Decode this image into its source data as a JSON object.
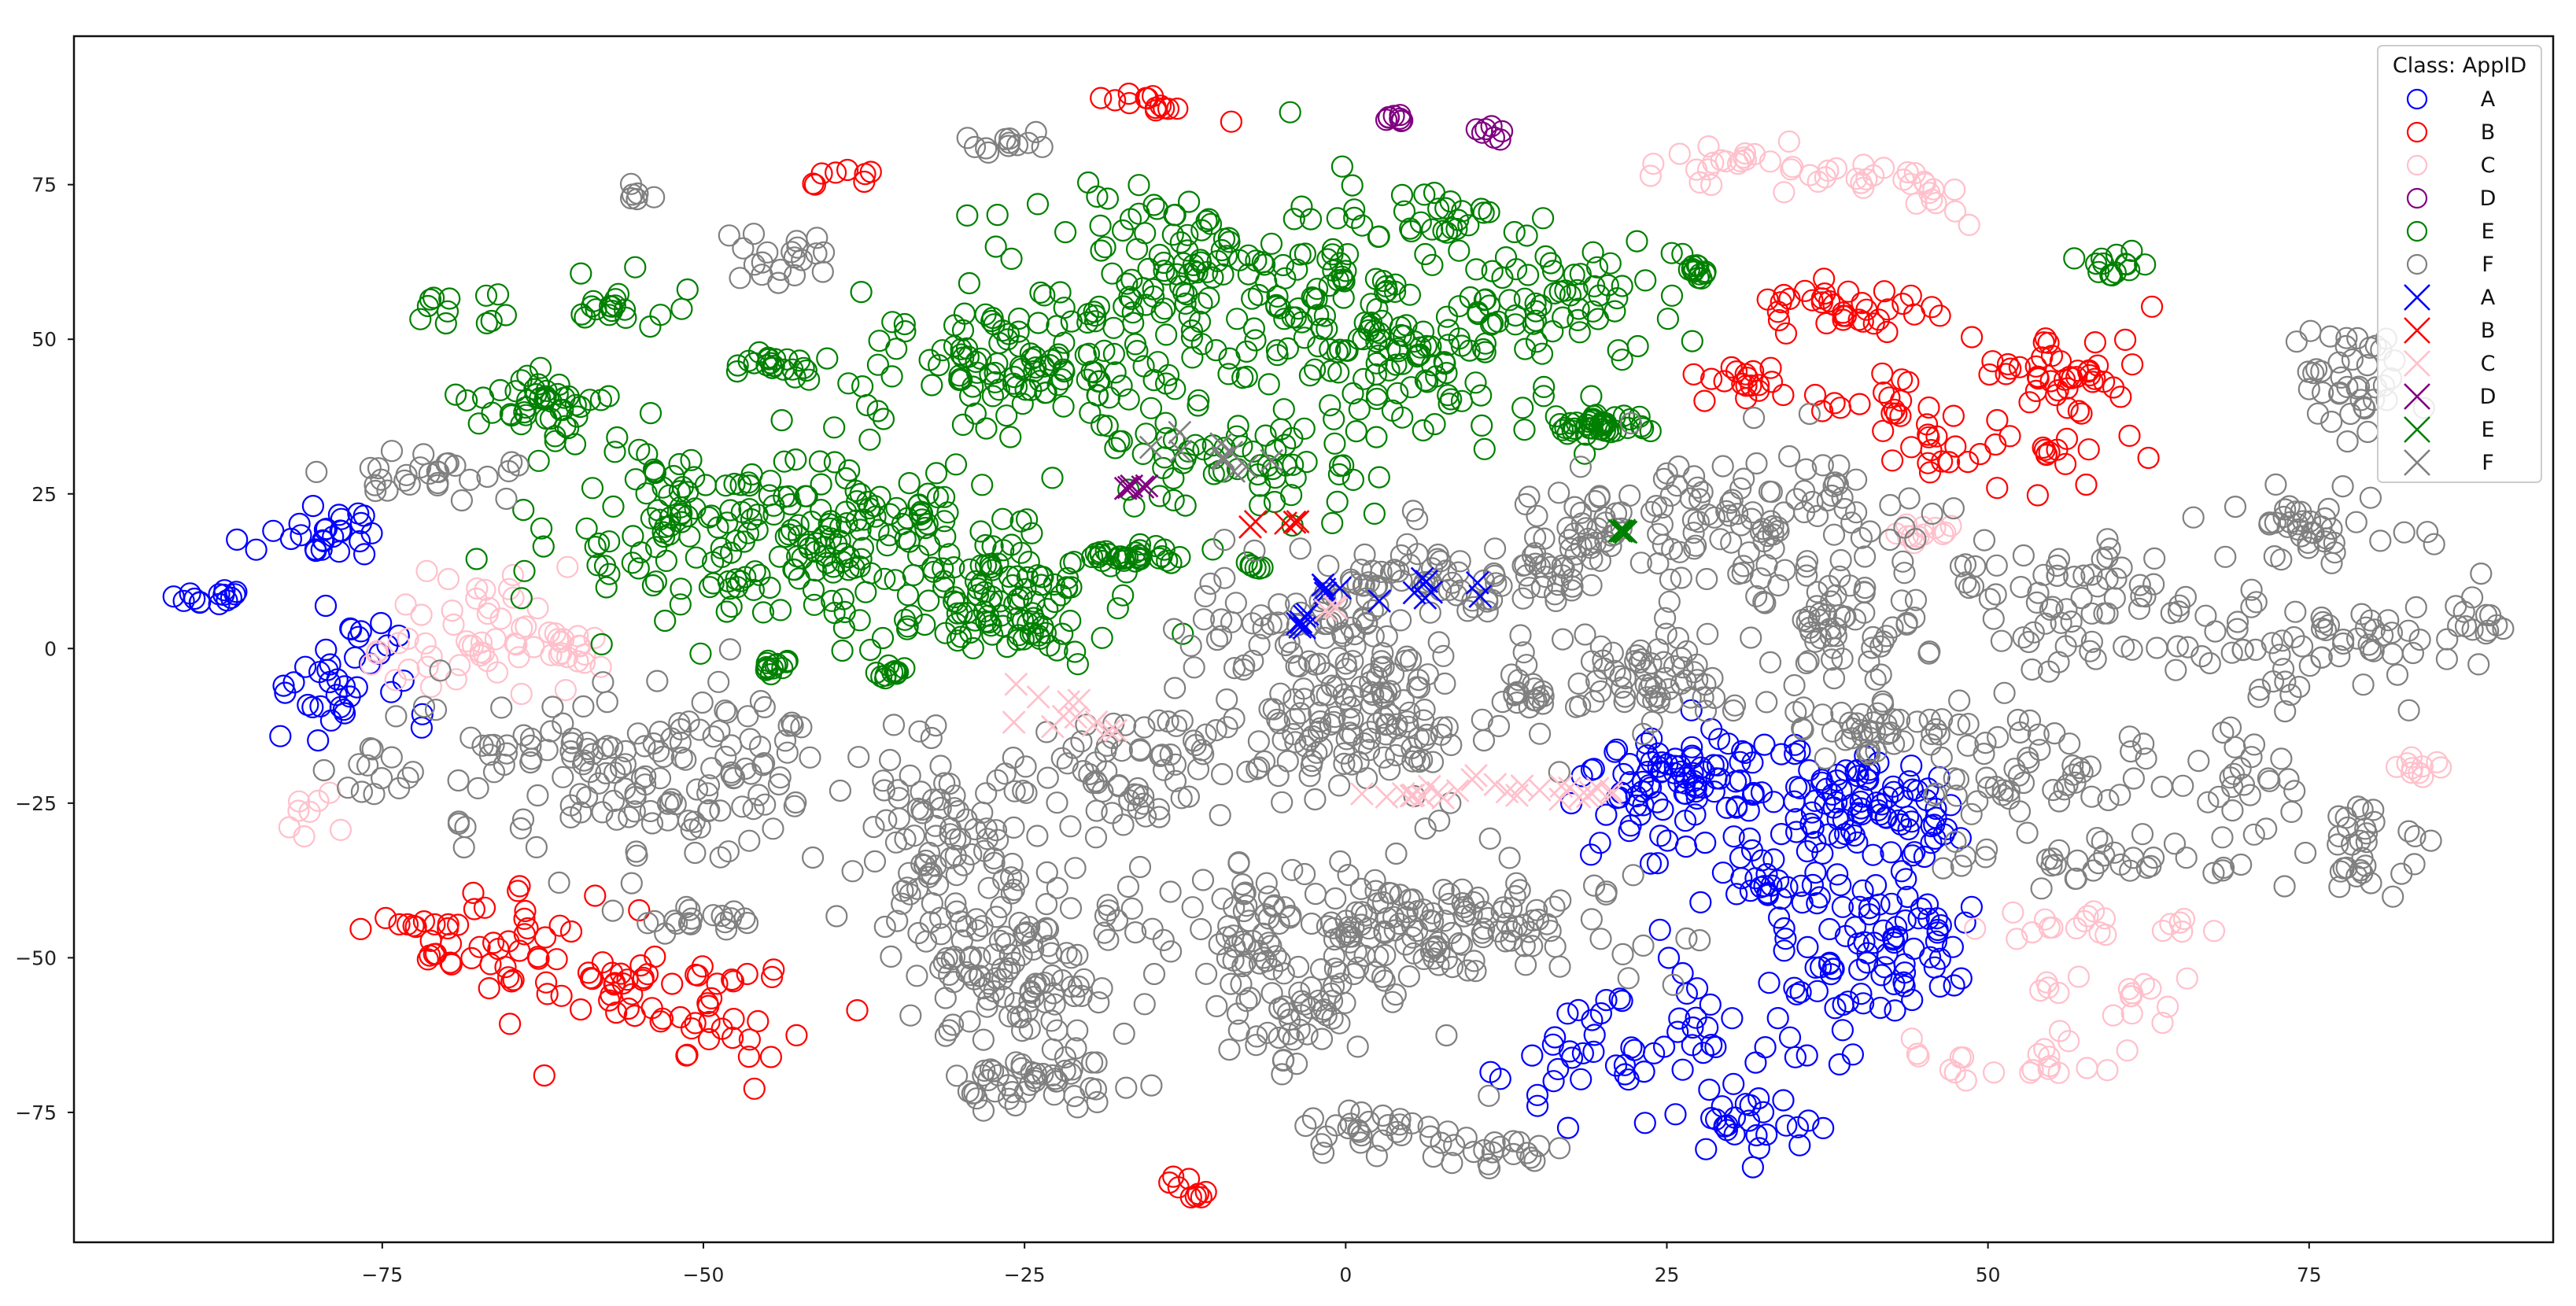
{
  "chart_data": {
    "type": "scatter",
    "title": "",
    "xlabel": "",
    "ylabel": "",
    "xlim": [
      -99,
      94
    ],
    "ylim": [
      -96,
      99
    ],
    "grid": false,
    "x_ticks": [
      -75,
      -50,
      -25,
      0,
      25,
      50,
      75
    ],
    "y_ticks": [
      -75,
      -50,
      -25,
      0,
      25,
      50,
      75
    ],
    "legend": {
      "title": "Class: AppID",
      "placement": "top-right",
      "entries": [
        {
          "label": "A",
          "marker": "circle",
          "color": "#0000ff"
        },
        {
          "label": "B",
          "marker": "circle",
          "color": "#ff0000"
        },
        {
          "label": "C",
          "marker": "circle",
          "color": "#ffc0cb"
        },
        {
          "label": "D",
          "marker": "circle",
          "color": "#800080"
        },
        {
          "label": "E",
          "marker": "circle",
          "color": "#008000"
        },
        {
          "label": "F",
          "marker": "circle",
          "color": "#808080"
        },
        {
          "label": "A",
          "marker": "x",
          "color": "#0000ff"
        },
        {
          "label": "B",
          "marker": "x",
          "color": "#ff0000"
        },
        {
          "label": "C",
          "marker": "x",
          "color": "#ffc0cb"
        },
        {
          "label": "D",
          "marker": "x",
          "color": "#800080"
        },
        {
          "label": "E",
          "marker": "x",
          "color": "#008000"
        },
        {
          "label": "F",
          "marker": "x",
          "color": "#808080"
        }
      ]
    },
    "series": [
      {
        "class": "A",
        "marker": "circle",
        "color": "#0000ff",
        "clusters": [
          {
            "x": -88,
            "y": 8,
            "sx": 1.5,
            "sy": 1.0,
            "n": 14
          },
          {
            "x": -80,
            "y": 18,
            "sx": 3.0,
            "sy": 3.0,
            "n": 26
          },
          {
            "x": -79,
            "y": -8,
            "sx": 3.5,
            "sy": 4.0,
            "n": 28
          },
          {
            "x": -77,
            "y": 2,
            "sx": 1.5,
            "sy": 2.5,
            "n": 10
          },
          {
            "x": 27,
            "y": -22,
            "sx": 4.0,
            "sy": 4.5,
            "n": 90
          },
          {
            "x": 41,
            "y": -26,
            "sx": 3.5,
            "sy": 4.0,
            "n": 80
          },
          {
            "x": 35,
            "y": -38,
            "sx": 5.0,
            "sy": 4.0,
            "n": 55
          },
          {
            "x": 40,
            "y": -50,
            "sx": 4.0,
            "sy": 4.0,
            "n": 50
          },
          {
            "x": 27,
            "y": -62,
            "sx": 7.0,
            "sy": 5.0,
            "n": 42
          },
          {
            "x": 31,
            "y": -77,
            "sx": 3.0,
            "sy": 3.5,
            "n": 30
          },
          {
            "x": 20,
            "y": -70,
            "sx": 4.0,
            "sy": 3.0,
            "n": 16
          },
          {
            "x": 44,
            "y": -46,
            "sx": 3.0,
            "sy": 2.0,
            "n": 14
          }
        ]
      },
      {
        "class": "B",
        "marker": "circle",
        "color": "#ff0000",
        "clusters": [
          {
            "x": -14,
            "y": 88,
            "sx": 3.0,
            "sy": 1.2,
            "n": 14
          },
          {
            "x": -40,
            "y": 76,
            "sx": 1.5,
            "sy": 1.5,
            "n": 8
          },
          {
            "x": -12,
            "y": -87,
            "sx": 1.8,
            "sy": 1.0,
            "n": 9
          },
          {
            "x": 38,
            "y": 55,
            "sx": 4.0,
            "sy": 2.5,
            "n": 36
          },
          {
            "x": 31,
            "y": 43,
            "sx": 2.5,
            "sy": 2.0,
            "n": 18
          },
          {
            "x": 42,
            "y": 40,
            "sx": 2.5,
            "sy": 2.5,
            "n": 18
          },
          {
            "x": 55,
            "y": 45,
            "sx": 3.5,
            "sy": 3.5,
            "n": 42
          },
          {
            "x": 47,
            "y": 32,
            "sx": 2.0,
            "sy": 2.5,
            "n": 14
          },
          {
            "x": 54,
            "y": 31,
            "sx": 3.0,
            "sy": 2.5,
            "n": 18
          },
          {
            "x": -73,
            "y": -44,
            "sx": 2.0,
            "sy": 1.0,
            "n": 8
          },
          {
            "x": -66,
            "y": -46,
            "sx": 3.5,
            "sy": 4.0,
            "n": 30
          },
          {
            "x": -69,
            "y": -50,
            "sx": 3.0,
            "sy": 1.0,
            "n": 10
          },
          {
            "x": -59,
            "y": -54,
            "sx": 2.5,
            "sy": 1.5,
            "n": 12
          },
          {
            "x": -52,
            "y": -60,
            "sx": 4.5,
            "sy": 4.5,
            "n": 40
          },
          {
            "x": -48,
            "y": -53,
            "sx": 1.5,
            "sy": 1.0,
            "n": 8
          }
        ]
      },
      {
        "class": "C",
        "marker": "circle",
        "color": "#ffc0cb",
        "clusters": [
          {
            "x": 30,
            "y": 78,
            "sx": 3.0,
            "sy": 2.0,
            "n": 22
          },
          {
            "x": 40,
            "y": 76,
            "sx": 3.5,
            "sy": 1.0,
            "n": 16
          },
          {
            "x": 46,
            "y": 73,
            "sx": 1.5,
            "sy": 2.5,
            "n": 10
          },
          {
            "x": 45,
            "y": 19,
            "sx": 2.0,
            "sy": 1.0,
            "n": 12
          },
          {
            "x": -68,
            "y": 3,
            "sx": 3.0,
            "sy": 6.0,
            "n": 45
          },
          {
            "x": -61,
            "y": 0,
            "sx": 2.0,
            "sy": 2.0,
            "n": 20
          },
          {
            "x": -80,
            "y": -26,
            "sx": 1.0,
            "sy": 2.5,
            "n": 8
          },
          {
            "x": 57,
            "y": -45,
            "sx": 3.0,
            "sy": 1.5,
            "n": 14
          },
          {
            "x": 67,
            "y": -45,
            "sx": 1.2,
            "sy": 1.0,
            "n": 6
          },
          {
            "x": 60,
            "y": -56,
            "sx": 3.5,
            "sy": 2.0,
            "n": 16
          },
          {
            "x": 52,
            "y": -66,
            "sx": 4.5,
            "sy": 2.0,
            "n": 22
          },
          {
            "x": 84,
            "y": -19,
            "sx": 1.8,
            "sy": 1.2,
            "n": 10
          }
        ]
      },
      {
        "class": "D",
        "marker": "circle",
        "color": "#800080",
        "clusters": [
          {
            "x": 4,
            "y": 86,
            "sx": 0.5,
            "sy": 0.6,
            "n": 8
          },
          {
            "x": 10,
            "y": 84,
            "sx": 1.0,
            "sy": 0.6,
            "n": 7
          }
        ]
      },
      {
        "class": "E",
        "marker": "circle",
        "color": "#008000",
        "clusters": [
          {
            "x": -67,
            "y": 55,
            "sx": 3.0,
            "sy": 2.0,
            "n": 12
          },
          {
            "x": -56,
            "y": 56,
            "sx": 2.5,
            "sy": 2.0,
            "n": 20
          },
          {
            "x": -62,
            "y": 40,
            "sx": 3.0,
            "sy": 3.0,
            "n": 45
          },
          {
            "x": -45,
            "y": 46,
            "sx": 1.5,
            "sy": 1.0,
            "n": 22
          },
          {
            "x": -48,
            "y": 20,
            "sx": 8.0,
            "sy": 8.0,
            "n": 160
          },
          {
            "x": -34,
            "y": 15,
            "sx": 6.0,
            "sy": 7.0,
            "n": 110
          },
          {
            "x": -26,
            "y": 6,
            "sx": 4.0,
            "sy": 4.0,
            "n": 60
          },
          {
            "x": -25,
            "y": 45,
            "sx": 6.0,
            "sy": 6.0,
            "n": 110
          },
          {
            "x": -10,
            "y": 60,
            "sx": 9.0,
            "sy": 9.0,
            "n": 170
          },
          {
            "x": 5,
            "y": 48,
            "sx": 7.0,
            "sy": 7.0,
            "n": 110
          },
          {
            "x": -8,
            "y": 30,
            "sx": 5.0,
            "sy": 4.0,
            "n": 60
          },
          {
            "x": 15,
            "y": 58,
            "sx": 5.0,
            "sy": 5.0,
            "n": 60
          },
          {
            "x": 20,
            "y": 36,
            "sx": 1.5,
            "sy": 1.0,
            "n": 45
          },
          {
            "x": -17,
            "y": 15,
            "sx": 2.0,
            "sy": 1.0,
            "n": 35
          },
          {
            "x": -35,
            "y": -4,
            "sx": 0.6,
            "sy": 0.6,
            "n": 12
          },
          {
            "x": -45,
            "y": -3,
            "sx": 0.8,
            "sy": 0.6,
            "n": 12
          },
          {
            "x": 27,
            "y": 61,
            "sx": 0.6,
            "sy": 0.6,
            "n": 12
          },
          {
            "x": 60,
            "y": 62,
            "sx": 1.5,
            "sy": 1.0,
            "n": 14
          },
          {
            "x": -7,
            "y": 13,
            "sx": 0.4,
            "sy": 0.4,
            "n": 6
          },
          {
            "x": 8,
            "y": 70,
            "sx": 3.0,
            "sy": 2.0,
            "n": 20
          }
        ]
      },
      {
        "class": "F",
        "marker": "circle",
        "color": "#808080",
        "clusters": [
          {
            "x": -72,
            "y": 28,
            "sx": 4.0,
            "sy": 2.0,
            "n": 28
          },
          {
            "x": -54,
            "y": -20,
            "sx": 9.0,
            "sy": 7.0,
            "n": 160
          },
          {
            "x": -32,
            "y": -30,
            "sx": 4.0,
            "sy": 6.0,
            "n": 70
          },
          {
            "x": -25,
            "y": -50,
            "sx": 5.0,
            "sy": 8.0,
            "n": 140
          },
          {
            "x": -24,
            "y": -70,
            "sx": 4.0,
            "sy": 2.0,
            "n": 40
          },
          {
            "x": -18,
            "y": -20,
            "sx": 4.0,
            "sy": 5.0,
            "n": 60
          },
          {
            "x": 0,
            "y": -12,
            "sx": 6.0,
            "sy": 6.0,
            "n": 150
          },
          {
            "x": -3,
            "y": 5,
            "sx": 5.0,
            "sy": 3.0,
            "n": 60
          },
          {
            "x": 9,
            "y": 12,
            "sx": 6.0,
            "sy": 4.0,
            "n": 80
          },
          {
            "x": 5,
            "y": -45,
            "sx": 8.0,
            "sy": 5.0,
            "n": 170
          },
          {
            "x": -4,
            "y": -60,
            "sx": 3.0,
            "sy": 4.0,
            "n": 50
          },
          {
            "x": 2,
            "y": -78,
            "sx": 4.0,
            "sy": 2.0,
            "n": 30
          },
          {
            "x": 12,
            "y": -82,
            "sx": 3.0,
            "sy": 1.5,
            "n": 18
          },
          {
            "x": -8,
            "y": -45,
            "sx": 1.5,
            "sy": 6.0,
            "n": 25
          },
          {
            "x": 30,
            "y": 20,
            "sx": 7.0,
            "sy": 6.0,
            "n": 120
          },
          {
            "x": 25,
            "y": -5,
            "sx": 3.0,
            "sy": 4.0,
            "n": 60
          },
          {
            "x": 40,
            "y": 5,
            "sx": 4.0,
            "sy": 5.0,
            "n": 60
          },
          {
            "x": 42,
            "y": -12,
            "sx": 4.0,
            "sy": 3.0,
            "n": 50
          },
          {
            "x": 56,
            "y": 10,
            "sx": 5.0,
            "sy": 6.0,
            "n": 60
          },
          {
            "x": 53,
            "y": -20,
            "sx": 5.0,
            "sy": 4.0,
            "n": 50
          },
          {
            "x": 62,
            "y": -34,
            "sx": 8.0,
            "sy": 2.0,
            "n": 40
          },
          {
            "x": 74,
            "y": 0,
            "sx": 6.0,
            "sy": 5.0,
            "n": 70
          },
          {
            "x": 75,
            "y": 20,
            "sx": 4.0,
            "sy": 3.0,
            "n": 40
          },
          {
            "x": 79,
            "y": 42,
            "sx": 2.5,
            "sy": 5.0,
            "n": 40
          },
          {
            "x": 80,
            "y": -32,
            "sx": 2.5,
            "sy": 4.0,
            "n": 30
          },
          {
            "x": -49,
            "y": -44,
            "sx": 4.0,
            "sy": 1.0,
            "n": 20
          },
          {
            "x": -76,
            "y": -20,
            "sx": 2.0,
            "sy": 2.0,
            "n": 10
          },
          {
            "x": -44,
            "y": 63,
            "sx": 2.0,
            "sy": 3.0,
            "n": 20
          },
          {
            "x": -27,
            "y": 82,
            "sx": 2.0,
            "sy": 1.0,
            "n": 12
          },
          {
            "x": -54,
            "y": 73,
            "sx": 1.0,
            "sy": 1.0,
            "n": 6
          },
          {
            "x": 15,
            "y": -7,
            "sx": 2.0,
            "sy": 2.0,
            "n": 20
          },
          {
            "x": 18,
            "y": 20,
            "sx": 2.0,
            "sy": 3.0,
            "n": 20
          },
          {
            "x": 70,
            "y": -20,
            "sx": 2.0,
            "sy": 3.0,
            "n": 20
          },
          {
            "x": 88,
            "y": 5,
            "sx": 1.5,
            "sy": 2.0,
            "n": 12
          }
        ]
      },
      {
        "class": "A",
        "marker": "x",
        "color": "#0000ff",
        "clusters": [
          {
            "x": 6,
            "y": 10,
            "sx": 1.8,
            "sy": 1.5,
            "n": 8
          },
          {
            "x": -1,
            "y": 10,
            "sx": 1.0,
            "sy": 1.0,
            "n": 4
          },
          {
            "x": -3,
            "y": 4,
            "sx": 0.6,
            "sy": 1.0,
            "n": 6
          }
        ]
      },
      {
        "class": "B",
        "marker": "x",
        "color": "#ff0000",
        "clusters": [
          {
            "x": -6,
            "y": 20,
            "sx": 1.0,
            "sy": 0.5,
            "n": 5
          }
        ]
      },
      {
        "class": "C",
        "marker": "x",
        "color": "#ffc0cb",
        "clusters": [
          {
            "x": -22,
            "y": -10,
            "sx": 2.5,
            "sy": 2.5,
            "n": 12
          },
          {
            "x": 5,
            "y": -24,
            "sx": 3.0,
            "sy": 0.5,
            "n": 10
          },
          {
            "x": 15,
            "y": -23,
            "sx": 4.5,
            "sy": 1.0,
            "n": 18
          },
          {
            "x": -1,
            "y": 7,
            "sx": 0.5,
            "sy": 0.5,
            "n": 3
          }
        ]
      },
      {
        "class": "D",
        "marker": "x",
        "color": "#800080",
        "clusters": [
          {
            "x": -16,
            "y": 26,
            "sx": 0.8,
            "sy": 0.6,
            "n": 5
          }
        ]
      },
      {
        "class": "E",
        "marker": "x",
        "color": "#008000",
        "clusters": [
          {
            "x": 22,
            "y": 19,
            "sx": 0.5,
            "sy": 0.5,
            "n": 5
          }
        ]
      },
      {
        "class": "F",
        "marker": "x",
        "color": "#808080",
        "clusters": [
          {
            "x": -10,
            "y": 32,
            "sx": 2.5,
            "sy": 1.5,
            "n": 10
          }
        ]
      }
    ]
  }
}
